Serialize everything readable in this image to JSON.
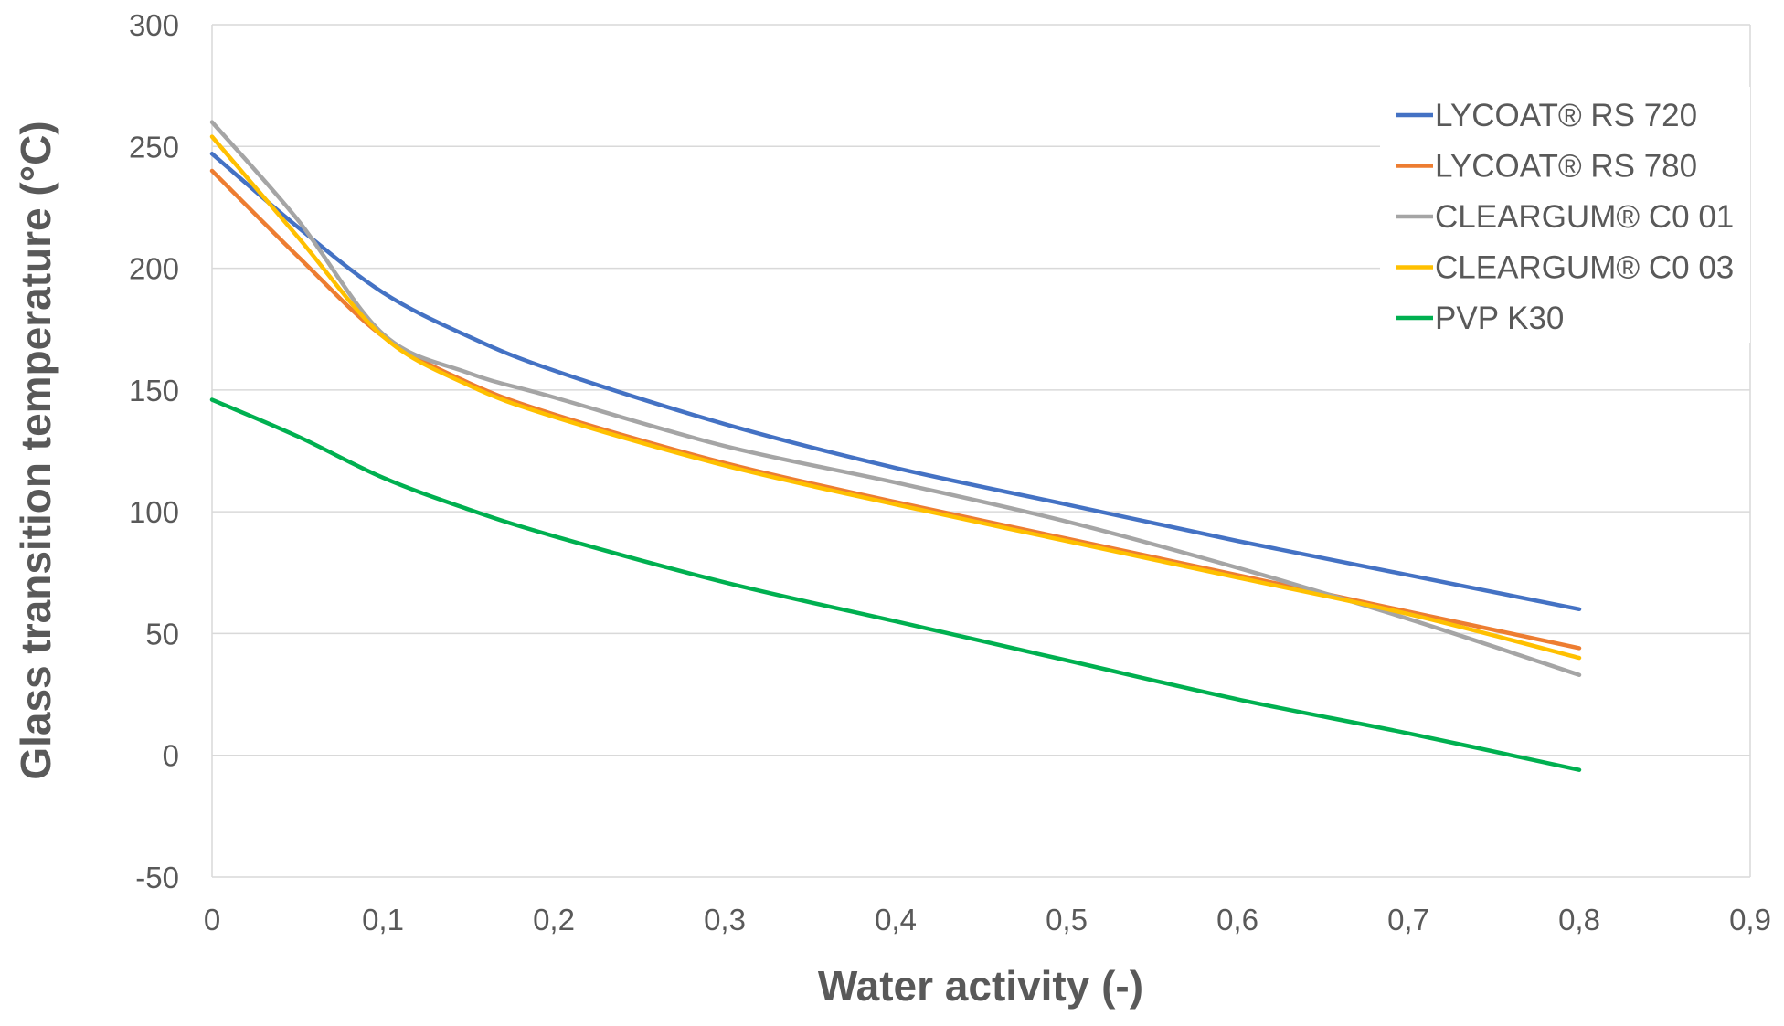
{
  "chart_data": {
    "type": "line",
    "title": "",
    "xlabel": "Water activity (-)",
    "ylabel": "Glass transition temperature (°C)",
    "xlim": [
      0,
      0.9
    ],
    "ylim": [
      -50,
      300
    ],
    "x_ticks": [
      "0",
      "0,1",
      "0,2",
      "0,3",
      "0,4",
      "0,5",
      "0,6",
      "0,7",
      "0,8",
      "0,9"
    ],
    "y_ticks": [
      "300",
      "250",
      "200",
      "150",
      "100",
      "50",
      "0",
      "-50"
    ],
    "grid": "horizontal",
    "legend_position": "top-right",
    "series": [
      {
        "name": "LYCOAT® RS 720",
        "color": "#4472C4",
        "x": [
          0,
          0.05,
          0.1,
          0.15,
          0.2,
          0.3,
          0.4,
          0.5,
          0.6,
          0.7,
          0.8
        ],
        "y": [
          247,
          217,
          190,
          172,
          158,
          136,
          118,
          103,
          88,
          74,
          60
        ]
      },
      {
        "name": "LYCOAT® RS 780",
        "color": "#ED7D31",
        "x": [
          0,
          0.05,
          0.1,
          0.15,
          0.2,
          0.3,
          0.4,
          0.5,
          0.6,
          0.7,
          0.8
        ],
        "y": [
          240,
          205,
          172,
          153,
          140,
          120,
          104,
          89,
          74,
          59,
          44
        ]
      },
      {
        "name": "CLEARGUM® C0 01",
        "color": "#A5A5A5",
        "x": [
          0,
          0.05,
          0.1,
          0.15,
          0.2,
          0.3,
          0.4,
          0.5,
          0.6,
          0.7,
          0.8
        ],
        "y": [
          260,
          220,
          173,
          157,
          147,
          127,
          112,
          96,
          77,
          56,
          33
        ]
      },
      {
        "name": "CLEARGUM® C0 03",
        "color": "#FFC000",
        "x": [
          0,
          0.05,
          0.1,
          0.15,
          0.2,
          0.3,
          0.4,
          0.5,
          0.6,
          0.7,
          0.8
        ],
        "y": [
          254,
          213,
          172,
          152,
          139,
          119,
          103,
          88,
          73,
          58,
          40
        ]
      },
      {
        "name": "PVP K30",
        "color": "#00B050",
        "x": [
          0,
          0.05,
          0.1,
          0.15,
          0.2,
          0.3,
          0.4,
          0.5,
          0.6,
          0.7,
          0.8
        ],
        "y": [
          146,
          131,
          114,
          101,
          90,
          71,
          55,
          39,
          23,
          9,
          -6
        ]
      }
    ]
  }
}
